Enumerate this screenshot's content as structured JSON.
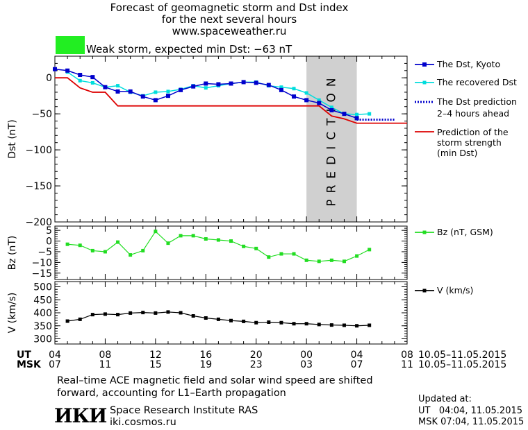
{
  "header": {
    "line1": "Forecast of geomagnetic storm and Dst index",
    "line2": "for the next several hours",
    "line3": "www.spaceweather.ru",
    "storm_label": "Weak storm, expected min Dst: −63 nT",
    "storm_color": "#22ee22"
  },
  "chart_data": [
    {
      "type": "line",
      "ylabel": "Dst (nT)",
      "ylim": [
        -200,
        30
      ],
      "yticks": [
        0,
        -50,
        -100,
        -150,
        -200
      ],
      "ytick_labels": [
        "0",
        "−50",
        "−100",
        "−150",
        "−200"
      ],
      "xlim": [
        4,
        32
      ],
      "prediction_band": [
        24,
        28
      ],
      "prediction_text": "PREDICTION",
      "series": [
        {
          "name": "The Dst, Kyoto",
          "color": "#0000cc",
          "x": [
            4,
            5,
            6,
            7,
            8,
            9,
            10,
            11,
            12,
            13,
            14,
            15,
            16,
            17,
            18,
            19,
            20,
            21,
            22,
            23,
            24,
            25,
            26,
            27,
            28
          ],
          "y": [
            12,
            10,
            4,
            1,
            -13,
            -19,
            -19,
            -26,
            -31,
            -25,
            -17,
            -12,
            -8,
            -9,
            -8,
            -6,
            -7,
            -10,
            -17,
            -26,
            -31,
            -35,
            -45,
            -50,
            -56
          ]
        },
        {
          "name": "The recovered Dst",
          "color": "#00dddd",
          "x": [
            5,
            6,
            7,
            8,
            9,
            10,
            11,
            12,
            13,
            14,
            15,
            16,
            17,
            18,
            19,
            20,
            21,
            22,
            23,
            24,
            25,
            26,
            27,
            28,
            29
          ],
          "y": [
            8,
            -4,
            -7,
            -13,
            -11,
            -20,
            -25,
            -20,
            -19,
            -16,
            -11,
            -14,
            -11,
            -8,
            -6,
            -6,
            -11,
            -13,
            -15,
            -21,
            -31,
            -41,
            -50,
            -51,
            -50
          ]
        },
        {
          "name": "The Dst prediction",
          "name2": "2–4 hours ahead",
          "color": "#0000cc",
          "x": [
            28,
            31
          ],
          "y": [
            -58,
            -58
          ]
        },
        {
          "name": "Prediction of the",
          "name2": "storm strength",
          "name3": "(min Dst)",
          "color": "#dd0000",
          "x": [
            4,
            5,
            6,
            7,
            8,
            9,
            25,
            26,
            27,
            28,
            32
          ],
          "y": [
            0,
            0,
            -14,
            -20,
            -20,
            -39,
            -39,
            -53,
            -57,
            -63,
            -63
          ]
        }
      ]
    },
    {
      "type": "line",
      "ylabel": "Bz (nT)",
      "ylim": [
        -18,
        7
      ],
      "yticks": [
        5,
        0,
        -5,
        -10,
        -15
      ],
      "ytick_labels": [
        "5",
        "0",
        "−5",
        "−10",
        "−15"
      ],
      "xlim": [
        4,
        32
      ],
      "series": [
        {
          "name": "Bz (nT, GSM)",
          "color": "#22dd22",
          "x": [
            5,
            6,
            7,
            8,
            9,
            10,
            11,
            12,
            13,
            14,
            15,
            16,
            17,
            18,
            19,
            20,
            21,
            22,
            23,
            24,
            25,
            26,
            27,
            28,
            29
          ],
          "y": [
            -1.5,
            -2,
            -4.5,
            -5,
            -0.5,
            -6.5,
            -4.5,
            4.5,
            -1,
            2.5,
            2.5,
            1,
            0.5,
            0,
            -2.5,
            -3.5,
            -7.5,
            -6,
            -6,
            -9,
            -9.5,
            -9,
            -9.5,
            -7,
            -4
          ]
        }
      ]
    },
    {
      "type": "line",
      "ylabel": "V (km/s)",
      "ylim": [
        280,
        520
      ],
      "yticks": [
        500,
        450,
        400,
        350,
        300
      ],
      "ytick_labels": [
        "500",
        "450",
        "400",
        "350",
        "300"
      ],
      "xlim": [
        4,
        32
      ],
      "series": [
        {
          "name": "V (km/s)",
          "color": "#000000",
          "x": [
            5,
            6,
            7,
            8,
            9,
            10,
            11,
            12,
            13,
            14,
            15,
            16,
            17,
            18,
            19,
            20,
            21,
            22,
            23,
            24,
            25,
            26,
            27,
            28,
            29
          ],
          "y": [
            368,
            375,
            393,
            395,
            393,
            399,
            401,
            399,
            403,
            400,
            388,
            380,
            375,
            370,
            367,
            362,
            364,
            362,
            358,
            358,
            355,
            353,
            352,
            350,
            352
          ]
        }
      ]
    }
  ],
  "xaxis": {
    "ut_label": "UT",
    "msk_label": "MSK",
    "ut_ticks": [
      "04",
      "08",
      "12",
      "16",
      "20",
      "00",
      "04",
      "08"
    ],
    "msk_ticks": [
      "07",
      "11",
      "15",
      "19",
      "23",
      "03",
      "07",
      "11"
    ],
    "date_ut": "10.05–11.05.2015",
    "date_msk": "10.05–11.05.2015"
  },
  "footer": {
    "note1": "Real–time ACE magnetic field and solar wind speed are shifted",
    "note2": "forward, accounting for L1–Earth propagation",
    "logo": "ИКИ",
    "institute": "Space Research Institute RAS",
    "site": "iki.cosmos.ru",
    "updated_label": "Updated at:",
    "updated_ut": "UT   04:04, 11.05.2015",
    "updated_msk": "MSK 07:04, 11.05.2015"
  }
}
